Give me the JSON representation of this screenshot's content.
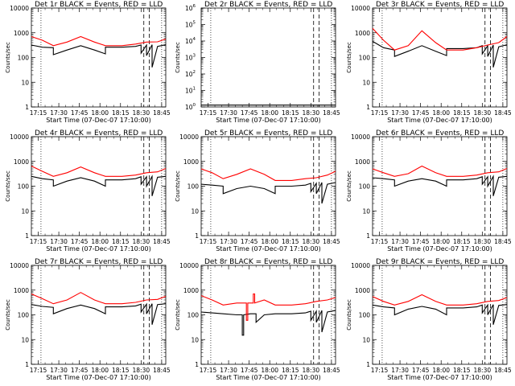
{
  "figure": {
    "title_suffix": "BLACK = Events, RED = LLD",
    "x_tick_labels": [
      "17:15",
      "17:30",
      "17:45",
      "18:00",
      "18:15",
      "18:30",
      "18:45"
    ],
    "xlabel": "Start Time (07-Dec-07 17:10:00)",
    "ylabel": "Counts/sec",
    "colors": {
      "events": "#000000",
      "lld": "#ff0000"
    }
  },
  "chart_data": [
    {
      "type": "line",
      "title": "Det 1r BLACK = Events, RED = LLD",
      "detector": "Det 1r",
      "xlabel": "Start Time (07-Dec-07 17:10:00)",
      "ylabel": "Counts/sec",
      "x_unit": "minutes since 17:10",
      "xlim": [
        0,
        98
      ],
      "yscale": "log",
      "ylim": [
        1,
        10000
      ],
      "y_tick_labels": [
        "1",
        "10",
        "100",
        "1000",
        "10000"
      ],
      "vlines_dotted": [
        7,
        95
      ],
      "vlines_dashed": [
        82,
        86
      ],
      "series": [
        {
          "name": "Events",
          "color": "#000000",
          "x": [
            0,
            8,
            16,
            16,
            26,
            36,
            46,
            54,
            54,
            66,
            76,
            80,
            80,
            84,
            84,
            88,
            88,
            92,
            98
          ],
          "y": [
            320,
            260,
            250,
            130,
            200,
            300,
            200,
            140,
            260,
            260,
            280,
            320,
            150,
            320,
            120,
            330,
            40,
            280,
            330
          ]
        },
        {
          "name": "LLD",
          "color": "#ff0000",
          "x": [
            0,
            8,
            16,
            26,
            36,
            46,
            54,
            66,
            76,
            84,
            92,
            98
          ],
          "y": [
            700,
            500,
            300,
            420,
            700,
            420,
            300,
            300,
            350,
            420,
            430,
            560
          ]
        }
      ]
    },
    {
      "type": "line",
      "title": "Det 2r BLACK = Events, RED = LLD",
      "detector": "Det 2r",
      "xlabel": "Start Time (07-Dec-07 17:10:00)",
      "ylabel": "Counts/sec",
      "x_unit": "minutes since 17:10",
      "xlim": [
        0,
        98
      ],
      "yscale": "log",
      "ylim": [
        1,
        1000000
      ],
      "y_tick_labels": [
        "10^0",
        "10^1",
        "10^2",
        "10^3",
        "10^4",
        "10^5",
        "10^6"
      ],
      "vlines_dotted": [
        7,
        95
      ],
      "vlines_dashed": [
        82,
        86
      ],
      "series": [
        {
          "name": "Events",
          "color": "#000000",
          "x": [
            0,
            98
          ],
          "y": [
            1.3,
            1.3
          ]
        },
        {
          "name": "LLD",
          "color": "#ff0000",
          "x": [],
          "y": []
        }
      ]
    },
    {
      "type": "line",
      "title": "Det 3r BLACK = Events, RED = LLD",
      "detector": "Det 3r",
      "xlabel": "Start Time (07-Dec-07 17:10:00)",
      "ylabel": "Counts/sec",
      "x_unit": "minutes since 17:10",
      "xlim": [
        0,
        98
      ],
      "yscale": "log",
      "ylim": [
        1,
        10000
      ],
      "y_tick_labels": [
        "1",
        "10",
        "100",
        "1000",
        "10000"
      ],
      "vlines_dotted": [
        7,
        95
      ],
      "vlines_dashed": [
        82,
        86
      ],
      "series": [
        {
          "name": "Events",
          "color": "#000000",
          "x": [
            0,
            8,
            16,
            16,
            26,
            36,
            46,
            54,
            54,
            66,
            76,
            80,
            80,
            84,
            84,
            88,
            88,
            92,
            98
          ],
          "y": [
            450,
            250,
            200,
            110,
            180,
            300,
            180,
            120,
            230,
            230,
            250,
            300,
            140,
            300,
            110,
            320,
            40,
            270,
            330
          ]
        },
        {
          "name": "LLD",
          "color": "#ff0000",
          "x": [
            0,
            8,
            16,
            26,
            36,
            46,
            54,
            66,
            76,
            84,
            92,
            98
          ],
          "y": [
            1500,
            500,
            200,
            300,
            1200,
            400,
            200,
            200,
            250,
            320,
            400,
            700
          ]
        }
      ]
    },
    {
      "type": "line",
      "title": "Det 4r BLACK = Events, RED = LLD",
      "detector": "Det 4r",
      "xlabel": "Start Time (07-Dec-07 17:10:00)",
      "ylabel": "Counts/sec",
      "x_unit": "minutes since 17:10",
      "xlim": [
        0,
        98
      ],
      "yscale": "log",
      "ylim": [
        1,
        10000
      ],
      "y_tick_labels": [
        "1",
        "10",
        "100",
        "1000",
        "10000"
      ],
      "vlines_dotted": [
        7,
        95
      ],
      "vlines_dashed": [
        82,
        86
      ],
      "series": [
        {
          "name": "Events",
          "color": "#000000",
          "x": [
            0,
            8,
            16,
            16,
            26,
            36,
            46,
            54,
            54,
            66,
            76,
            80,
            80,
            84,
            84,
            88,
            88,
            92,
            98
          ],
          "y": [
            250,
            200,
            180,
            100,
            160,
            220,
            160,
            100,
            180,
            180,
            200,
            240,
            120,
            240,
            100,
            250,
            40,
            230,
            250
          ]
        },
        {
          "name": "LLD",
          "color": "#ff0000",
          "x": [
            0,
            8,
            16,
            26,
            36,
            46,
            54,
            66,
            76,
            84,
            92,
            98
          ],
          "y": [
            650,
            400,
            250,
            350,
            600,
            350,
            250,
            250,
            280,
            350,
            380,
            520
          ]
        }
      ]
    },
    {
      "type": "line",
      "title": "Det 5r BLACK = Events, RED = LLD",
      "detector": "Det 5r",
      "xlabel": "Start Time (07-Dec-07 17:10:00)",
      "ylabel": "Counts/sec",
      "x_unit": "minutes since 17:10",
      "xlim": [
        0,
        98
      ],
      "yscale": "log",
      "ylim": [
        1,
        10000
      ],
      "y_tick_labels": [
        "1",
        "10",
        "100",
        "1000",
        "10000"
      ],
      "vlines_dotted": [
        7,
        95
      ],
      "vlines_dashed": [
        82,
        86
      ],
      "series": [
        {
          "name": "Events",
          "color": "#000000",
          "x": [
            0,
            8,
            16,
            16,
            26,
            36,
            46,
            54,
            54,
            66,
            76,
            80,
            80,
            84,
            84,
            88,
            88,
            92,
            98
          ],
          "y": [
            120,
            110,
            100,
            50,
            80,
            100,
            80,
            50,
            100,
            100,
            110,
            130,
            60,
            130,
            50,
            140,
            20,
            120,
            140
          ]
        },
        {
          "name": "LLD",
          "color": "#ff0000",
          "x": [
            0,
            8,
            16,
            26,
            36,
            46,
            54,
            66,
            76,
            84,
            92,
            98
          ],
          "y": [
            500,
            350,
            200,
            300,
            500,
            300,
            170,
            170,
            200,
            220,
            280,
            400
          ]
        }
      ]
    },
    {
      "type": "line",
      "title": "Det 6r BLACK = Events, RED = LLD",
      "detector": "Det 6r",
      "xlabel": "Start Time (07-Dec-07 17:10:00)",
      "ylabel": "Counts/sec",
      "x_unit": "minutes since 17:10",
      "xlim": [
        0,
        98
      ],
      "yscale": "log",
      "ylim": [
        1,
        10000
      ],
      "y_tick_labels": [
        "1",
        "10",
        "100",
        "1000",
        "10000"
      ],
      "vlines_dotted": [
        7,
        95
      ],
      "vlines_dashed": [
        82,
        86
      ],
      "series": [
        {
          "name": "Events",
          "color": "#000000",
          "x": [
            0,
            8,
            16,
            16,
            26,
            36,
            46,
            54,
            54,
            66,
            76,
            80,
            80,
            84,
            84,
            88,
            88,
            92,
            98
          ],
          "y": [
            220,
            200,
            180,
            100,
            160,
            200,
            160,
            100,
            180,
            180,
            200,
            240,
            120,
            240,
            100,
            250,
            40,
            230,
            250
          ]
        },
        {
          "name": "LLD",
          "color": "#ff0000",
          "x": [
            0,
            8,
            16,
            26,
            36,
            46,
            54,
            66,
            76,
            84,
            92,
            98
          ],
          "y": [
            500,
            350,
            250,
            320,
            650,
            350,
            250,
            250,
            280,
            350,
            380,
            520
          ]
        }
      ]
    },
    {
      "type": "line",
      "title": "Det 7r BLACK = Events, RED = LLD",
      "detector": "Det 7r",
      "xlabel": "Start Time (07-Dec-07 17:10:00)",
      "ylabel": "Counts/sec",
      "x_unit": "minutes since 17:10",
      "xlim": [
        0,
        98
      ],
      "yscale": "log",
      "ylim": [
        1,
        10000
      ],
      "y_tick_labels": [
        "1",
        "10",
        "100",
        "1000",
        "10000"
      ],
      "vlines_dotted": [
        7,
        95
      ],
      "vlines_dashed": [
        82,
        86
      ],
      "series": [
        {
          "name": "Events",
          "color": "#000000",
          "x": [
            0,
            8,
            16,
            16,
            26,
            36,
            46,
            54,
            54,
            66,
            76,
            80,
            80,
            84,
            84,
            88,
            88,
            92,
            98
          ],
          "y": [
            260,
            220,
            200,
            110,
            180,
            250,
            180,
            110,
            210,
            210,
            230,
            270,
            130,
            270,
            110,
            280,
            40,
            260,
            280
          ]
        },
        {
          "name": "LLD",
          "color": "#ff0000",
          "x": [
            0,
            8,
            16,
            26,
            36,
            46,
            54,
            66,
            76,
            84,
            92,
            98
          ],
          "y": [
            700,
            450,
            280,
            400,
            800,
            400,
            280,
            280,
            320,
            400,
            420,
            560
          ]
        }
      ]
    },
    {
      "type": "line",
      "title": "Det 8r BLACK = Events, RED = LLD",
      "detector": "Det 8r",
      "xlabel": "Start Time (07-Dec-07 17:10:00)",
      "ylabel": "Counts/sec",
      "x_unit": "minutes since 17:10",
      "xlim": [
        0,
        98
      ],
      "yscale": "log",
      "ylim": [
        1,
        10000
      ],
      "y_tick_labels": [
        "1",
        "10",
        "100",
        "1000",
        "10000"
      ],
      "vlines_dotted": [
        7,
        95
      ],
      "vlines_dashed": [
        82,
        86
      ],
      "series": [
        {
          "name": "Events",
          "color": "#000000",
          "x": [
            0,
            8,
            16,
            26,
            30,
            30,
            31,
            31,
            36,
            40,
            40,
            46,
            54,
            66,
            76,
            80,
            80,
            84,
            84,
            88,
            88,
            92,
            98
          ],
          "y": [
            130,
            120,
            110,
            100,
            100,
            15,
            15,
            100,
            110,
            110,
            50,
            100,
            110,
            110,
            120,
            140,
            60,
            140,
            50,
            150,
            20,
            130,
            150
          ]
        },
        {
          "name": "LLD",
          "color": "#ff0000",
          "x": [
            0,
            8,
            16,
            26,
            33,
            33,
            34,
            34,
            36,
            38,
            38,
            39,
            39,
            46,
            54,
            66,
            76,
            84,
            92,
            98
          ],
          "y": [
            600,
            400,
            250,
            300,
            300,
            60,
            60,
            300,
            300,
            300,
            700,
            700,
            300,
            400,
            250,
            250,
            280,
            350,
            400,
            500
          ]
        }
      ]
    },
    {
      "type": "line",
      "title": "Det 9r BLACK = Events, RED = LLD",
      "detector": "Det 9r",
      "xlabel": "Start Time (07-Dec-07 17:10:00)",
      "ylabel": "Counts/sec",
      "x_unit": "minutes since 17:10",
      "xlim": [
        0,
        98
      ],
      "yscale": "log",
      "ylim": [
        1,
        10000
      ],
      "y_tick_labels": [
        "1",
        "10",
        "100",
        "1000",
        "10000"
      ],
      "vlines_dotted": [
        7,
        95
      ],
      "vlines_dashed": [
        82,
        86
      ],
      "series": [
        {
          "name": "Events",
          "color": "#000000",
          "x": [
            0,
            8,
            16,
            16,
            26,
            36,
            46,
            54,
            54,
            66,
            76,
            80,
            80,
            84,
            84,
            88,
            88,
            92,
            98
          ],
          "y": [
            250,
            210,
            190,
            100,
            170,
            220,
            170,
            100,
            190,
            190,
            210,
            250,
            120,
            250,
            100,
            260,
            40,
            240,
            260
          ]
        },
        {
          "name": "LLD",
          "color": "#ff0000",
          "x": [
            0,
            8,
            16,
            26,
            36,
            46,
            54,
            66,
            76,
            84,
            92,
            98
          ],
          "y": [
            550,
            350,
            250,
            350,
            650,
            350,
            250,
            250,
            280,
            350,
            380,
            500
          ]
        }
      ]
    }
  ]
}
